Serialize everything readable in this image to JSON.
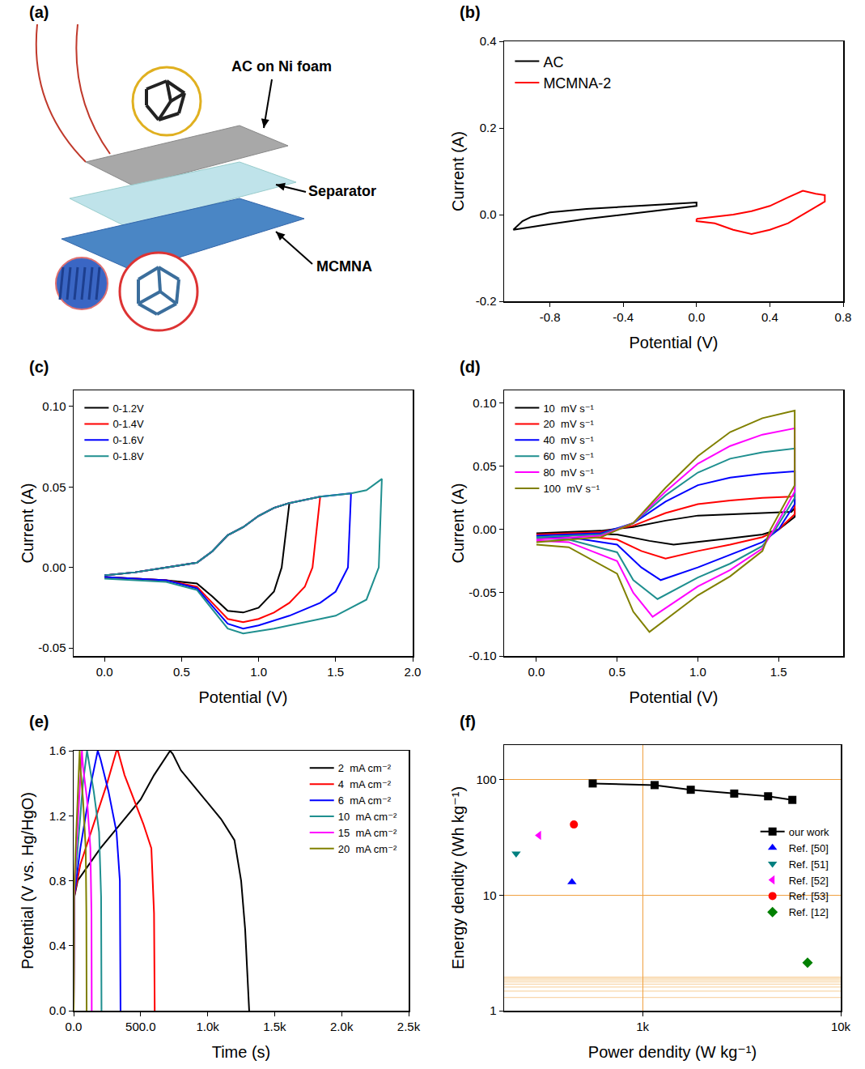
{
  "chart_data": [
    {
      "type": "diagram",
      "panel": "(a)",
      "labels": [
        "AC on Ni foam",
        "Separator",
        "MCMNA"
      ]
    },
    {
      "type": "line",
      "panel": "(b)",
      "x_label": "Potential (V)",
      "y_label": "Current (A)",
      "xlim": [
        -1.05,
        0.8
      ],
      "xticks": [
        -0.8,
        -0.4,
        {
          "value": 0,
          "label": "0.0"
        },
        0.4,
        0.8
      ],
      "ylim": [
        -0.2,
        0.4
      ],
      "yticks": [
        -0.2,
        {
          "value": 0,
          "label": "0.0"
        },
        0.2,
        0.4
      ],
      "grid": false,
      "legend": "top left",
      "series": [
        {
          "name": "AC",
          "color": "#000000",
          "x": [
            -1.0,
            -0.95,
            -0.9,
            -0.8,
            -0.6,
            -0.4,
            -0.2,
            0.0,
            0.0,
            -0.2,
            -0.4,
            -0.6,
            -0.8,
            -0.95,
            -1.0
          ],
          "values": [
            -0.035,
            -0.015,
            -0.005,
            0.005,
            0.013,
            0.018,
            0.023,
            0.028,
            0.02,
            0.01,
            0.0,
            -0.01,
            -0.022,
            -0.032,
            -0.035
          ]
        },
        {
          "name": "MCMNA-2",
          "color": "#ff0000",
          "x": [
            0.0,
            0.1,
            0.2,
            0.3,
            0.4,
            0.5,
            0.58,
            0.65,
            0.7,
            0.7,
            0.6,
            0.5,
            0.4,
            0.3,
            0.2,
            0.1,
            0.0,
            0.0
          ],
          "values": [
            -0.01,
            -0.005,
            0.0,
            0.008,
            0.02,
            0.04,
            0.055,
            0.048,
            0.045,
            0.03,
            0.005,
            -0.02,
            -0.035,
            -0.045,
            -0.035,
            -0.02,
            -0.015,
            -0.01
          ]
        }
      ]
    },
    {
      "type": "line",
      "panel": "(c)",
      "x_label": "Potential (V)",
      "y_label": "Current (A)",
      "xlim": [
        -0.2,
        2.0
      ],
      "xticks": [
        {
          "value": 0,
          "label": "0.0"
        },
        0.5,
        {
          "value": 1,
          "label": "1.0"
        },
        1.5,
        {
          "value": 2,
          "label": "2.0"
        }
      ],
      "ylim": [
        -0.055,
        0.11
      ],
      "yticks": [
        -0.05,
        {
          "value": 0,
          "label": "0.00"
        },
        0.05,
        {
          "value": 0.1,
          "label": "0.10"
        }
      ],
      "grid": false,
      "legend": "top left",
      "series": [
        {
          "name": "0-1.2V",
          "color": "#000000",
          "x": [
            0,
            0.2,
            0.4,
            0.6,
            0.7,
            0.8,
            0.9,
            1.0,
            1.1,
            1.2,
            1.15,
            1.1,
            1.0,
            0.9,
            0.8,
            0.7,
            0.6,
            0.4,
            0.2,
            0
          ],
          "values": [
            -0.005,
            -0.003,
            0.0,
            0.003,
            0.01,
            0.02,
            0.025,
            0.032,
            0.037,
            0.04,
            0.0,
            -0.015,
            -0.025,
            -0.028,
            -0.027,
            -0.018,
            -0.01,
            -0.008,
            -0.007,
            -0.006
          ]
        },
        {
          "name": "0-1.4V",
          "color": "#ff0000",
          "x": [
            0,
            0.2,
            0.4,
            0.6,
            0.7,
            0.8,
            0.9,
            1.0,
            1.1,
            1.2,
            1.3,
            1.4,
            1.35,
            1.3,
            1.2,
            1.1,
            1.0,
            0.9,
            0.8,
            0.7,
            0.6,
            0.4,
            0.2,
            0
          ],
          "values": [
            -0.005,
            -0.003,
            0.0,
            0.003,
            0.01,
            0.02,
            0.025,
            0.032,
            0.037,
            0.04,
            0.042,
            0.044,
            0.0,
            -0.012,
            -0.022,
            -0.028,
            -0.032,
            -0.034,
            -0.032,
            -0.022,
            -0.012,
            -0.008,
            -0.007,
            -0.006
          ]
        },
        {
          "name": "0-1.6V",
          "color": "#0000ff",
          "x": [
            0,
            0.2,
            0.4,
            0.6,
            0.7,
            0.8,
            0.9,
            1.0,
            1.1,
            1.2,
            1.3,
            1.4,
            1.5,
            1.6,
            1.58,
            1.5,
            1.4,
            1.2,
            1.0,
            0.9,
            0.8,
            0.7,
            0.6,
            0.4,
            0.2,
            0
          ],
          "values": [
            -0.005,
            -0.003,
            0.0,
            0.003,
            0.01,
            0.02,
            0.025,
            0.032,
            0.037,
            0.04,
            0.042,
            0.044,
            0.045,
            0.046,
            0.0,
            -0.015,
            -0.022,
            -0.03,
            -0.036,
            -0.038,
            -0.035,
            -0.024,
            -0.013,
            -0.008,
            -0.007,
            -0.006
          ]
        },
        {
          "name": "0-1.8V",
          "color": "#1f8f8f",
          "x": [
            0,
            0.2,
            0.4,
            0.6,
            0.7,
            0.8,
            0.9,
            1.0,
            1.1,
            1.2,
            1.3,
            1.4,
            1.5,
            1.6,
            1.7,
            1.8,
            1.78,
            1.7,
            1.5,
            1.3,
            1.1,
            0.9,
            0.8,
            0.7,
            0.6,
            0.4,
            0.2,
            0
          ],
          "values": [
            -0.005,
            -0.003,
            0.0,
            0.003,
            0.01,
            0.02,
            0.025,
            0.032,
            0.037,
            0.04,
            0.042,
            0.044,
            0.045,
            0.046,
            0.048,
            0.055,
            0.0,
            -0.02,
            -0.03,
            -0.034,
            -0.038,
            -0.041,
            -0.038,
            -0.026,
            -0.014,
            -0.009,
            -0.008,
            -0.007
          ]
        }
      ]
    },
    {
      "type": "line",
      "panel": "(d)",
      "x_label": "Potential (V)",
      "y_label": "Current (A)",
      "xlim": [
        -0.2,
        1.9
      ],
      "xticks": [
        {
          "value": 0,
          "label": "0.0"
        },
        0.5,
        {
          "value": 1,
          "label": "1.0"
        },
        1.5
      ],
      "ylim": [
        -0.1,
        0.11
      ],
      "yticks": [
        {
          "value": -0.1,
          "label": "-0.10"
        },
        -0.05,
        {
          "value": 0,
          "label": "0.00"
        },
        0.05,
        {
          "value": 0.1,
          "label": "0.10"
        }
      ],
      "grid": false,
      "legend": "top left",
      "series": [
        {
          "name": "10  mV s⁻¹",
          "color": "#000000",
          "x": [
            0,
            0.4,
            0.6,
            0.8,
            1.0,
            1.2,
            1.4,
            1.58,
            1.6,
            1.6,
            1.5,
            1.4,
            1.2,
            1.0,
            0.85,
            0.7,
            0.5,
            0.2,
            0
          ],
          "values": [
            -0.003,
            -0.001,
            0.002,
            0.007,
            0.011,
            0.012,
            0.013,
            0.014,
            0.017,
            0.01,
            0.0,
            -0.004,
            -0.007,
            -0.01,
            -0.012,
            -0.009,
            -0.004,
            -0.003,
            -0.003
          ]
        },
        {
          "name": "20  mV s⁻¹",
          "color": "#ff0000",
          "x": [
            0,
            0.4,
            0.6,
            0.8,
            1.0,
            1.2,
            1.4,
            1.58,
            1.6,
            1.6,
            1.5,
            1.4,
            1.2,
            1.0,
            0.8,
            0.65,
            0.5,
            0.2,
            0
          ],
          "values": [
            -0.004,
            -0.002,
            0.003,
            0.013,
            0.02,
            0.023,
            0.025,
            0.026,
            0.027,
            0.012,
            0.0,
            -0.006,
            -0.012,
            -0.017,
            -0.023,
            -0.017,
            -0.008,
            -0.004,
            -0.004
          ]
        },
        {
          "name": "40  mV s⁻¹",
          "color": "#0000ff",
          "x": [
            0,
            0.4,
            0.6,
            0.8,
            1.0,
            1.2,
            1.4,
            1.58,
            1.6,
            1.6,
            1.5,
            1.4,
            1.2,
            1.0,
            0.77,
            0.65,
            0.5,
            0.2,
            0
          ],
          "values": [
            -0.005,
            -0.003,
            0.005,
            0.022,
            0.035,
            0.041,
            0.044,
            0.046,
            0.046,
            0.02,
            0.0,
            -0.01,
            -0.02,
            -0.03,
            -0.04,
            -0.03,
            -0.012,
            -0.006,
            -0.006
          ]
        },
        {
          "name": "60  mV s⁻¹",
          "color": "#1f8f8f",
          "x": [
            0,
            0.4,
            0.6,
            0.8,
            1.0,
            1.2,
            1.4,
            1.6,
            1.6,
            1.48,
            1.4,
            1.2,
            1.0,
            0.75,
            0.6,
            0.5,
            0.2,
            0
          ],
          "values": [
            -0.006,
            -0.004,
            0.005,
            0.027,
            0.045,
            0.056,
            0.061,
            0.064,
            0.025,
            0.0,
            -0.013,
            -0.027,
            -0.038,
            -0.055,
            -0.04,
            -0.018,
            -0.008,
            -0.007
          ]
        },
        {
          "name": "80  mV s⁻¹",
          "color": "#ff00ff",
          "x": [
            0,
            0.4,
            0.6,
            0.8,
            1.0,
            1.2,
            1.4,
            1.6,
            1.6,
            1.47,
            1.4,
            1.2,
            1.0,
            0.72,
            0.6,
            0.5,
            0.2,
            0
          ],
          "values": [
            -0.008,
            -0.005,
            0.005,
            0.03,
            0.052,
            0.066,
            0.075,
            0.08,
            0.03,
            0.0,
            -0.015,
            -0.032,
            -0.045,
            -0.069,
            -0.05,
            -0.025,
            -0.01,
            -0.009
          ]
        },
        {
          "name": "100  mV s⁻¹",
          "color": "#808000",
          "x": [
            0,
            0.4,
            0.6,
            0.8,
            1.0,
            1.2,
            1.4,
            1.6,
            1.6,
            1.45,
            1.4,
            1.2,
            1.0,
            0.7,
            0.6,
            0.5,
            0.2,
            0
          ],
          "values": [
            -0.01,
            -0.006,
            0.005,
            0.033,
            0.058,
            0.077,
            0.088,
            0.094,
            0.035,
            0.0,
            -0.017,
            -0.037,
            -0.052,
            -0.081,
            -0.065,
            -0.035,
            -0.014,
            -0.012
          ]
        }
      ]
    },
    {
      "type": "line",
      "panel": "(e)",
      "x_label": "Time (s)",
      "y_label": "Potential (V vs. Hg/HgO)",
      "xlim": [
        0,
        2500
      ],
      "xticks": [
        {
          "value": 0,
          "label": "0.0"
        },
        {
          "value": 500,
          "label": "500.0"
        },
        {
          "value": 1000,
          "label": "1.0k"
        },
        {
          "value": 1500,
          "label": "1.5k"
        },
        {
          "value": 2000,
          "label": "2.0k"
        },
        {
          "value": 2500,
          "label": "2.5k"
        }
      ],
      "ylim": [
        0,
        1.6
      ],
      "yticks": [
        {
          "value": 0,
          "label": "0.0"
        },
        0.4,
        0.8,
        1.2,
        1.6
      ],
      "grid": false,
      "legend": "top right",
      "series": [
        {
          "name": "2  mA cm⁻²",
          "color": "#000000",
          "x": [
            0,
            5,
            30,
            100,
            200,
            300,
            400,
            500,
            600,
            720,
            740,
            800,
            900,
            1000,
            1100,
            1200,
            1250,
            1280,
            1300,
            1310
          ],
          "values": [
            0,
            0.7,
            0.8,
            0.88,
            1.0,
            1.1,
            1.2,
            1.3,
            1.45,
            1.6,
            1.58,
            1.48,
            1.38,
            1.28,
            1.18,
            1.05,
            0.8,
            0.5,
            0.2,
            0.0
          ]
        },
        {
          "name": "4  mA cm⁻²",
          "color": "#ff0000",
          "x": [
            0,
            3,
            50,
            150,
            250,
            320,
            330,
            380,
            450,
            520,
            580,
            600,
            605
          ],
          "values": [
            0,
            0.7,
            0.9,
            1.15,
            1.4,
            1.6,
            1.6,
            1.45,
            1.3,
            1.15,
            1.0,
            0.6,
            0.0
          ]
        },
        {
          "name": "6  mA cm⁻²",
          "color": "#0000ff",
          "x": [
            0,
            3,
            50,
            130,
            180,
            200,
            260,
            320,
            345,
            350
          ],
          "values": [
            0,
            0.7,
            1.0,
            1.4,
            1.6,
            1.55,
            1.35,
            1.1,
            0.8,
            0.0
          ]
        },
        {
          "name": "10  mA cm⁻²",
          "color": "#1f8f8f",
          "x": [
            0,
            2,
            30,
            70,
            100,
            110,
            150,
            190,
            205,
            208
          ],
          "values": [
            0,
            0.7,
            1.0,
            1.4,
            1.6,
            1.55,
            1.35,
            1.1,
            0.7,
            0.0
          ]
        },
        {
          "name": "15  mA cm⁻²",
          "color": "#ff00ff",
          "x": [
            0,
            2,
            20,
            45,
            62,
            70,
            100,
            125,
            133,
            135
          ],
          "values": [
            0,
            0.7,
            1.0,
            1.4,
            1.6,
            1.5,
            1.3,
            1.0,
            0.6,
            0.0
          ]
        },
        {
          "name": "20  mA cm⁻²",
          "color": "#808000",
          "x": [
            0,
            2,
            15,
            33,
            45,
            50,
            70,
            90,
            95,
            97
          ],
          "values": [
            0,
            0.7,
            1.0,
            1.4,
            1.6,
            1.5,
            1.3,
            1.0,
            0.6,
            0.0
          ]
        }
      ]
    },
    {
      "type": "scatter",
      "panel": "(f)",
      "x_label": "Power dendity (W kg⁻¹)",
      "y_label": "Energy dendity (Wh kg⁻¹)",
      "log": true,
      "grid": true,
      "legend": "right",
      "xlim": [
        200,
        10000
      ],
      "xticks": [
        {
          "value": 1000,
          "label": "1k"
        },
        {
          "value": 10000,
          "label": "10k"
        }
      ],
      "ylim": [
        1,
        200
      ],
      "yticks": [
        1,
        10,
        100
      ],
      "series": [
        {
          "name": "our work",
          "type": "line",
          "color": "#000000",
          "marker": "square",
          "x": [
            560,
            1150,
            1750,
            2900,
            4300,
            5700
          ],
          "values": [
            93,
            90,
            82,
            76,
            72,
            67
          ]
        },
        {
          "name": "Ref. [50]",
          "color": "#0000ff",
          "marker": "triangle-up",
          "x": [
            440
          ],
          "values": [
            13
          ]
        },
        {
          "name": "Ref. [51]",
          "color": "#008080",
          "marker": "triangle-down",
          "x": [
            230
          ],
          "values": [
            23
          ]
        },
        {
          "name": "Ref. [52]",
          "color": "#ff00ff",
          "marker": "triangle-left",
          "x": [
            300
          ],
          "values": [
            33
          ]
        },
        {
          "name": "Ref. [53]",
          "color": "#ff0000",
          "marker": "circle",
          "x": [
            450
          ],
          "values": [
            41
          ]
        },
        {
          "name": "Ref. [12]",
          "color": "#008000",
          "marker": "diamond",
          "x": [
            6800
          ],
          "values": [
            2.6
          ]
        }
      ]
    }
  ]
}
